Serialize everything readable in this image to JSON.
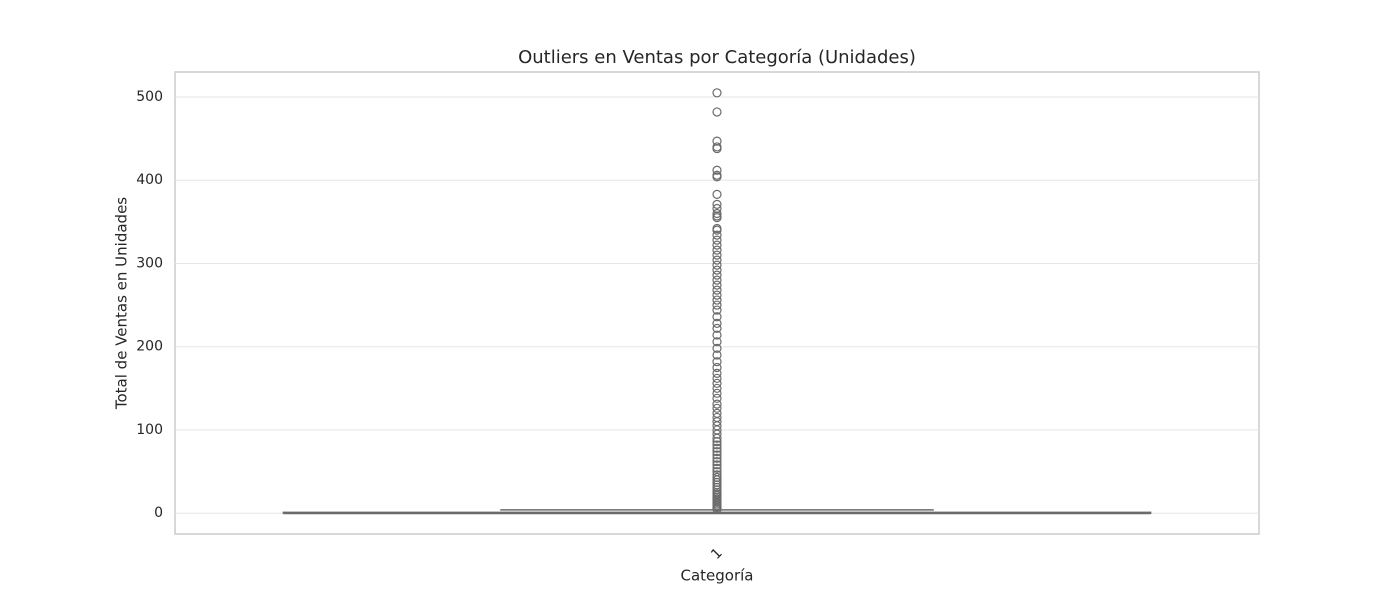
{
  "chart_data": {
    "type": "box",
    "title": "Outliers en Ventas por Categoría (Unidades)",
    "x_label": "Categoría",
    "y_label": "Total de Ventas en Unidades",
    "categories": [
      "1"
    ],
    "boxes": [
      {
        "whislo": 0,
        "q1": 0,
        "median": 0,
        "q3": 1,
        "whishi": 4,
        "outliers": [
          5,
          7,
          9,
          11,
          13,
          15,
          17,
          19,
          21,
          23,
          25,
          28,
          31,
          34,
          37,
          40,
          43,
          46,
          50,
          54,
          58,
          62,
          66,
          70,
          74,
          78,
          82,
          86,
          90,
          95,
          100,
          105,
          110,
          115,
          120,
          126,
          131,
          138,
          144,
          150,
          156,
          162,
          168,
          175,
          182,
          190,
          198,
          206,
          214,
          222,
          228,
          236,
          244,
          250,
          256,
          262,
          268,
          274,
          280,
          286,
          292,
          298,
          304,
          310,
          316,
          322,
          328,
          334,
          340,
          342,
          355,
          357,
          360,
          366,
          371,
          383,
          404,
          406,
          412,
          438,
          440,
          447,
          482,
          505
        ]
      }
    ],
    "color": "#6b6b6b",
    "ylim": [
      -25,
      530
    ],
    "yticks": [
      0,
      100,
      200,
      300,
      400,
      500
    ],
    "grid": true
  }
}
